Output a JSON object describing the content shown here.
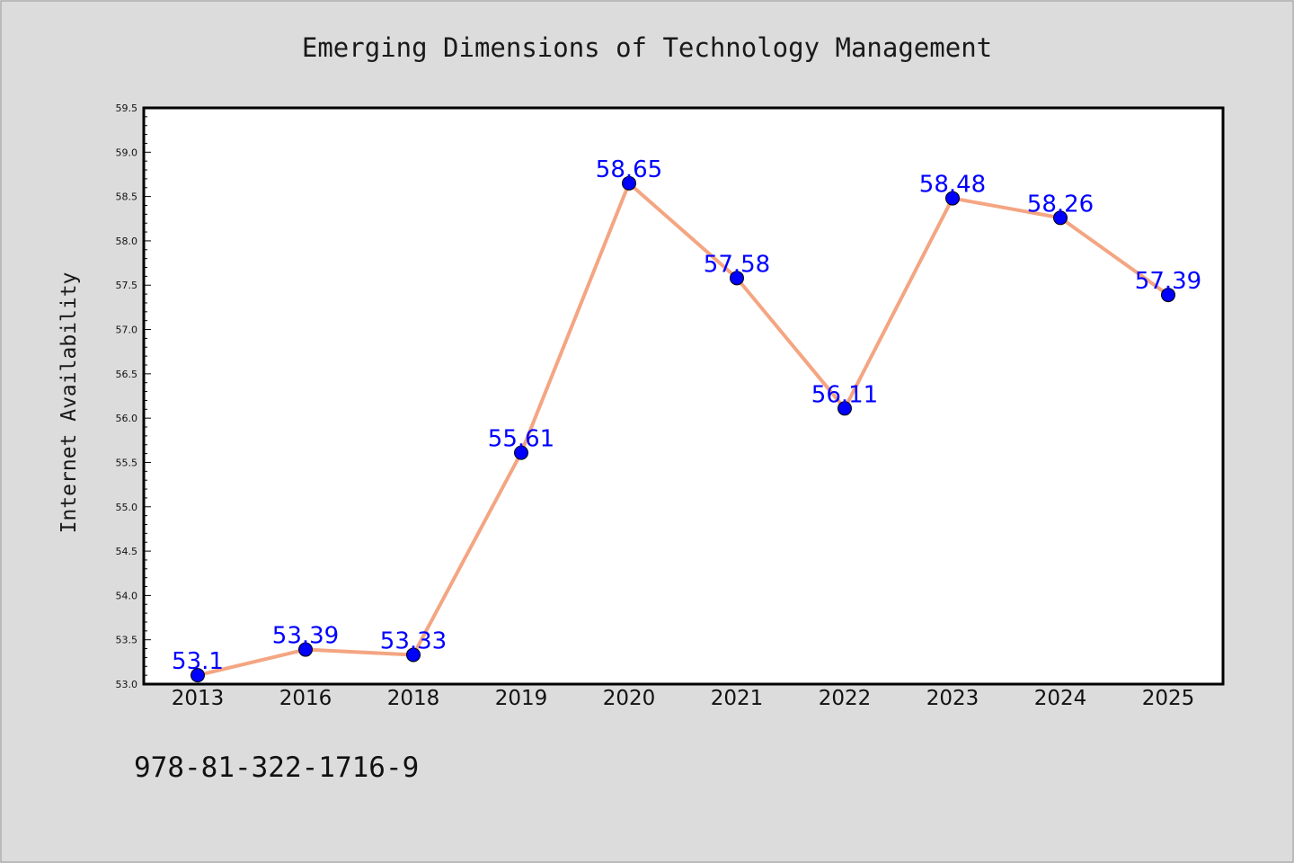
{
  "chart_data": {
    "type": "line",
    "title": "Emerging Dimensions of Technology Management",
    "xlabel": "",
    "ylabel": "Internet Availability",
    "categories": [
      "2013",
      "2016",
      "2018",
      "2019",
      "2020",
      "2021",
      "2022",
      "2023",
      "2024",
      "2025"
    ],
    "series": [
      {
        "values": [
          53.1,
          53.39,
          53.33,
          55.61,
          58.65,
          57.58,
          56.11,
          58.48,
          58.26,
          57.39
        ],
        "data_labels": [
          "53.1",
          "53.39",
          "53.33",
          "55.61",
          "58.65",
          "57.58",
          "56.11",
          "58.48",
          "58.26",
          "57.39"
        ]
      }
    ],
    "ylim": [
      53.0,
      59.5
    ],
    "yticks": [
      "53.0",
      "53.5",
      "54.0",
      "54.5",
      "55.0",
      "55.5",
      "56.0",
      "56.5",
      "57.0",
      "57.5",
      "58.0",
      "58.5",
      "59.0",
      "59.5"
    ],
    "grid": false,
    "legend": "none",
    "colors": {
      "line": "#f4a582",
      "marker": "#0000ff",
      "data_label": "#0000ff",
      "background": "#dcdcdc",
      "plot_area": "#ffffff"
    }
  },
  "footnote": "978-81-322-1716-9"
}
